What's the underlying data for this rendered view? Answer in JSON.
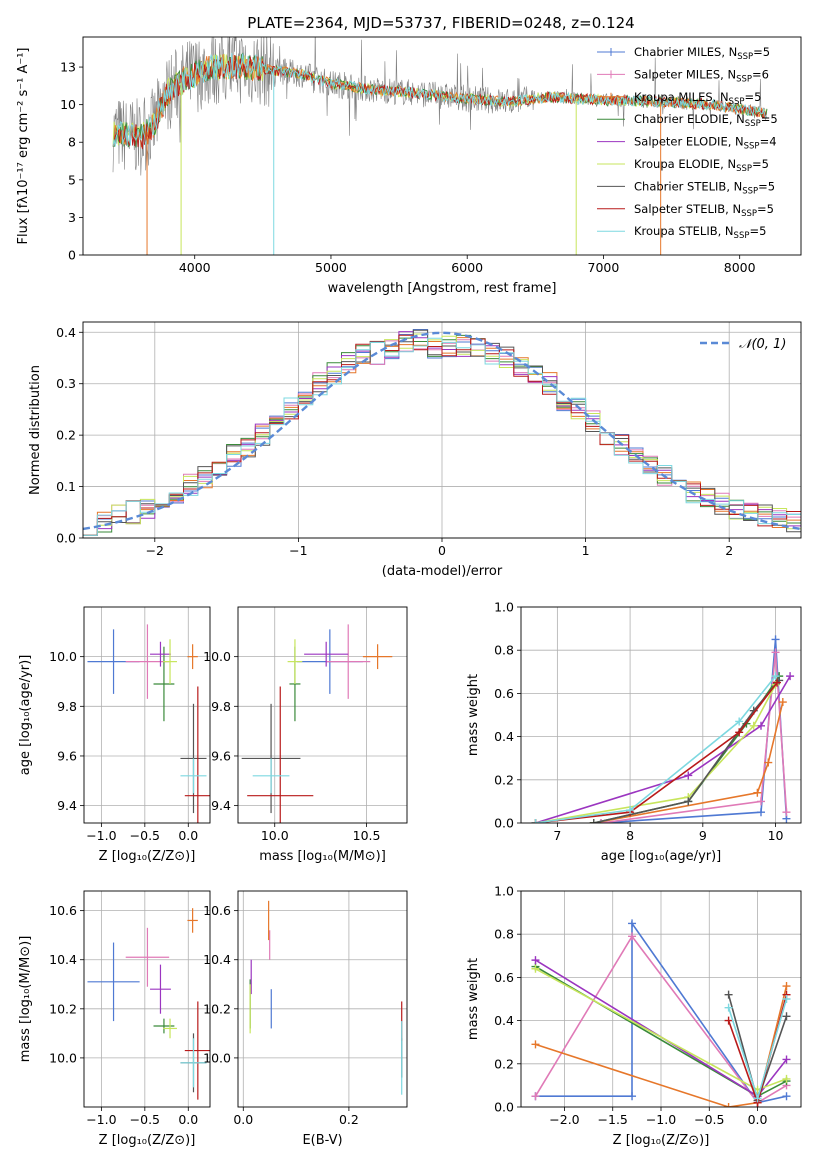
{
  "colors": {
    "chabrier_miles": "#4f79d3",
    "salpeter_miles": "#e07ab7",
    "kroupa_miles": "#e6772a",
    "chabrier_elodie": "#3a8a3a",
    "salpeter_elodie": "#9b35c0",
    "kroupa_elodie": "#c7e55c",
    "chabrier_stelib": "#555555",
    "salpeter_stelib": "#b81a1a",
    "kroupa_stelib": "#7dd8e0",
    "data": "#808080",
    "normal": "#5a8ad6"
  },
  "chart_data": [
    {
      "id": "spectrum",
      "type": "line",
      "title": "PLATE=2364, MJD=53737, FIBERID=0248, z=0.124",
      "xlabel": "wavelength [Angstrom, rest frame]",
      "ylabel": "Flux [fλ10⁻¹⁷ erg cm⁻² s⁻¹ A⁻¹]",
      "xlim": [
        3180,
        8450
      ],
      "ylim": [
        0,
        14.5
      ],
      "xticks": [
        4000,
        5000,
        6000,
        7000,
        8000
      ],
      "yticks": [
        0.0,
        2.5,
        5.0,
        7.5,
        10.0,
        12.5
      ],
      "grid": false,
      "legend_position": "top-right",
      "continuum": {
        "x": [
          3400,
          3600,
          3700,
          3800,
          3950,
          4100,
          4300,
          4500,
          4800,
          5000,
          5300,
          5600,
          6000,
          6300,
          6600,
          7000,
          7400,
          7800,
          8200
        ],
        "y": [
          8.1,
          7.8,
          8.6,
          10.8,
          11.8,
          12.4,
          12.6,
          12.4,
          12.0,
          11.4,
          11.0,
          10.8,
          10.4,
          10.2,
          10.5,
          10.3,
          10.2,
          10.0,
          9.4
        ]
      },
      "legend": [
        {
          "label": "Chabrier MILES, N$_{SSP}$=5",
          "text": "Chabrier MILES, N",
          "sub": "SSP",
          "eq": "=5",
          "color_key": "chabrier_miles",
          "marker": true
        },
        {
          "label": "Salpeter MILES, N$_{SSP}$=6",
          "text": "Salpeter MILES, N",
          "sub": "SSP",
          "eq": "=6",
          "color_key": "salpeter_miles",
          "marker": true
        },
        {
          "label": "Kroupa MILES, N$_{SSP}$=5",
          "text": "Kroupa MILES, N",
          "sub": "SSP",
          "eq": "=5",
          "color_key": "kroupa_miles",
          "marker": true
        },
        {
          "label": "Chabrier ELODIE, N$_{SSP}$=5",
          "text": "Chabrier ELODIE, N",
          "sub": "SSP",
          "eq": "=5",
          "color_key": "chabrier_elodie",
          "marker": false
        },
        {
          "label": "Salpeter ELODIE, N$_{SSP}$=4",
          "text": "Salpeter ELODIE, N",
          "sub": "SSP",
          "eq": "=4",
          "color_key": "salpeter_elodie",
          "marker": false
        },
        {
          "label": "Kroupa ELODIE, N$_{SSP}$=5",
          "text": "Kroupa ELODIE, N",
          "sub": "SSP",
          "eq": "=5",
          "color_key": "kroupa_elodie",
          "marker": false
        },
        {
          "label": "Chabrier STELIB, N$_{SSP}$=5",
          "text": "Chabrier STELIB, N",
          "sub": "SSP",
          "eq": "=5",
          "color_key": "chabrier_stelib",
          "marker": false
        },
        {
          "label": "Salpeter STELIB, N$_{SSP}$=5",
          "text": "Salpeter STELIB, N",
          "sub": "SSP",
          "eq": "=5",
          "color_key": "salpeter_stelib",
          "marker": false
        },
        {
          "label": "Kroupa STELIB, N$_{SSP}$=5",
          "text": "Kroupa STELIB, N",
          "sub": "SSP",
          "eq": "=5",
          "color_key": "kroupa_stelib",
          "marker": false
        }
      ]
    },
    {
      "id": "residuals",
      "type": "bar",
      "xlabel": "(data-model)/error",
      "ylabel": "Normed distribution",
      "xlim": [
        -2.5,
        2.5
      ],
      "ylim": [
        0,
        0.42
      ],
      "xticks": [
        -2,
        -1,
        0,
        1,
        2
      ],
      "yticks": [
        0.0,
        0.1,
        0.2,
        0.3,
        0.4
      ],
      "grid": true,
      "legend_position": "top-right",
      "legend": [
        {
          "label": "$\\mathcal{N}(0,1)$",
          "text": "𝒩(0, 1)"
        }
      ],
      "bin_width": 0.1,
      "bin_centers": [
        -2.45,
        -2.35,
        -2.25,
        -2.15,
        -2.05,
        -1.95,
        -1.85,
        -1.75,
        -1.65,
        -1.55,
        -1.45,
        -1.35,
        -1.25,
        -1.15,
        -1.05,
        -0.95,
        -0.85,
        -0.75,
        -0.65,
        -0.55,
        -0.45,
        -0.35,
        -0.25,
        -0.15,
        -0.05,
        0.05,
        0.15,
        0.25,
        0.35,
        0.45,
        0.55,
        0.65,
        0.75,
        0.85,
        0.95,
        1.05,
        1.15,
        1.25,
        1.35,
        1.45,
        1.55,
        1.65,
        1.75,
        1.85,
        1.95,
        2.05,
        2.15,
        2.25,
        2.35,
        2.45
      ],
      "series_profile": [
        0.025,
        0.033,
        0.042,
        0.05,
        0.06,
        0.075,
        0.09,
        0.105,
        0.12,
        0.14,
        0.16,
        0.18,
        0.2,
        0.225,
        0.25,
        0.275,
        0.3,
        0.32,
        0.34,
        0.355,
        0.36,
        0.37,
        0.38,
        0.385,
        0.37,
        0.37,
        0.375,
        0.37,
        0.36,
        0.35,
        0.335,
        0.315,
        0.3,
        0.27,
        0.25,
        0.225,
        0.2,
        0.18,
        0.16,
        0.14,
        0.12,
        0.105,
        0.09,
        0.078,
        0.067,
        0.058,
        0.05,
        0.043,
        0.037,
        0.032
      ]
    },
    {
      "id": "age_vs_z",
      "type": "scatter",
      "xlabel": "Z [log₁₀(Z/Z⊙)]",
      "ylabel": "age  [log₁₀(age/yr)]",
      "xlim": [
        -1.2,
        0.25
      ],
      "ylim": [
        9.33,
        10.2
      ],
      "xticks": [
        -1.0,
        -0.5,
        0.0
      ],
      "yticks": [
        9.4,
        9.6,
        9.8,
        10.0
      ],
      "grid": true,
      "points": [
        {
          "c": "chabrier_miles",
          "x": -0.86,
          "y": 9.98,
          "xerr": 0.3,
          "yerr": 0.13
        },
        {
          "c": "salpeter_miles",
          "x": -0.47,
          "y": 9.98,
          "xerr": 0.25,
          "yerr": 0.15
        },
        {
          "c": "kroupa_miles",
          "x": 0.05,
          "y": 10.0,
          "xerr": 0.06,
          "yerr": 0.05
        },
        {
          "c": "chabrier_elodie",
          "x": -0.28,
          "y": 9.89,
          "xerr": 0.12,
          "yerr": 0.15
        },
        {
          "c": "salpeter_elodie",
          "x": -0.32,
          "y": 10.01,
          "xerr": 0.12,
          "yerr": 0.05
        },
        {
          "c": "kroupa_elodie",
          "x": -0.21,
          "y": 9.98,
          "xerr": 0.08,
          "yerr": 0.09
        },
        {
          "c": "chabrier_stelib",
          "x": 0.06,
          "y": 9.59,
          "xerr": 0.15,
          "yerr": 0.22
        },
        {
          "c": "salpeter_stelib",
          "x": 0.11,
          "y": 9.44,
          "xerr": 0.15,
          "yerr": 0.44
        },
        {
          "c": "kroupa_stelib",
          "x": 0.06,
          "y": 9.52,
          "xerr": 0.15,
          "yerr": 0.07
        }
      ]
    },
    {
      "id": "age_vs_mass",
      "type": "scatter",
      "xlabel": "mass [log₁₀(M/M⊙)]",
      "ylabel": "",
      "xlim": [
        9.8,
        10.72
      ],
      "ylim": [
        9.33,
        10.2
      ],
      "xticks": [
        10.0,
        10.5
      ],
      "yticks": [
        9.4,
        9.6,
        9.8,
        10.0
      ],
      "grid": true,
      "points": [
        {
          "c": "chabrier_miles",
          "x": 10.3,
          "y": 9.98,
          "xerr": 0.18,
          "yerr": 0.13
        },
        {
          "c": "salpeter_miles",
          "x": 10.4,
          "y": 9.98,
          "xerr": 0.12,
          "yerr": 0.15
        },
        {
          "c": "kroupa_miles",
          "x": 10.56,
          "y": 10.0,
          "xerr": 0.08,
          "yerr": 0.05
        },
        {
          "c": "chabrier_elodie",
          "x": 10.11,
          "y": 9.89,
          "xerr": 0.03,
          "yerr": 0.15
        },
        {
          "c": "salpeter_elodie",
          "x": 10.28,
          "y": 10.01,
          "xerr": 0.12,
          "yerr": 0.05
        },
        {
          "c": "kroupa_elodie",
          "x": 10.11,
          "y": 9.98,
          "xerr": 0.04,
          "yerr": 0.09
        },
        {
          "c": "chabrier_stelib",
          "x": 9.98,
          "y": 9.59,
          "xerr": 0.16,
          "yerr": 0.22
        },
        {
          "c": "salpeter_stelib",
          "x": 10.03,
          "y": 9.44,
          "xerr": 0.18,
          "yerr": 0.44
        },
        {
          "c": "kroupa_stelib",
          "x": 9.98,
          "y": 9.52,
          "xerr": 0.1,
          "yerr": 0.07
        }
      ]
    },
    {
      "id": "weight_vs_age",
      "type": "line",
      "xlabel": "age  [log₁₀(age/yr)]",
      "ylabel": "mass weight",
      "xlim": [
        6.5,
        10.35
      ],
      "ylim": [
        0.0,
        1.0
      ],
      "xticks": [
        7,
        8,
        9,
        10
      ],
      "yticks": [
        0.0,
        0.2,
        0.4,
        0.6,
        0.8,
        1.0
      ],
      "grid": true,
      "series": [
        {
          "c": "chabrier_miles",
          "x": [
            7.6,
            9.8,
            10.0,
            10.15
          ],
          "y": [
            0.0,
            0.05,
            0.85,
            0.02
          ]
        },
        {
          "c": "salpeter_miles",
          "x": [
            7.6,
            9.8,
            10.0,
            10.15
          ],
          "y": [
            0.0,
            0.1,
            0.79,
            0.05
          ]
        },
        {
          "c": "kroupa_miles",
          "x": [
            7.5,
            9.75,
            9.9,
            10.1
          ],
          "y": [
            0.0,
            0.14,
            0.28,
            0.56
          ]
        },
        {
          "c": "chabrier_elodie",
          "x": [
            7.5,
            8.8,
            9.6,
            10.05
          ],
          "y": [
            0.0,
            0.1,
            0.46,
            0.68
          ]
        },
        {
          "c": "salpeter_elodie",
          "x": [
            6.7,
            8.8,
            9.8,
            10.2
          ],
          "y": [
            0.0,
            0.22,
            0.45,
            0.68
          ]
        },
        {
          "c": "kroupa_elodie",
          "x": [
            6.7,
            8.8,
            9.7,
            10.0
          ],
          "y": [
            0.0,
            0.12,
            0.45,
            0.64
          ]
        },
        {
          "c": "chabrier_stelib",
          "x": [
            7.5,
            8.8,
            9.7,
            10.05
          ],
          "y": [
            0.0,
            0.1,
            0.52,
            0.66
          ]
        },
        {
          "c": "salpeter_stelib",
          "x": [
            6.7,
            8.0,
            9.5,
            10.02
          ],
          "y": [
            0.0,
            0.05,
            0.42,
            0.65
          ]
        },
        {
          "c": "kroupa_stelib",
          "x": [
            6.7,
            8.0,
            9.5,
            10.0
          ],
          "y": [
            0.0,
            0.06,
            0.47,
            0.68
          ]
        }
      ]
    },
    {
      "id": "mass_vs_z",
      "type": "scatter",
      "xlabel": "Z [log₁₀(Z/Z⊙)]",
      "ylabel": "mass [log₁₀(M/M⊙)]",
      "xlim": [
        -1.2,
        0.25
      ],
      "ylim": [
        9.8,
        10.68
      ],
      "xticks": [
        -1.0,
        -0.5,
        0.0
      ],
      "yticks": [
        10.0,
        10.2,
        10.4,
        10.6
      ],
      "grid": true,
      "points": [
        {
          "c": "chabrier_miles",
          "x": -0.86,
          "y": 10.31,
          "xerr": 0.3,
          "yerr": 0.16
        },
        {
          "c": "salpeter_miles",
          "x": -0.47,
          "y": 10.41,
          "xerr": 0.25,
          "yerr": 0.12
        },
        {
          "c": "kroupa_miles",
          "x": 0.05,
          "y": 10.56,
          "xerr": 0.06,
          "yerr": 0.05
        },
        {
          "c": "chabrier_elodie",
          "x": -0.28,
          "y": 10.13,
          "xerr": 0.12,
          "yerr": 0.03
        },
        {
          "c": "salpeter_elodie",
          "x": -0.32,
          "y": 10.28,
          "xerr": 0.12,
          "yerr": 0.1
        },
        {
          "c": "kroupa_elodie",
          "x": -0.21,
          "y": 10.12,
          "xerr": 0.08,
          "yerr": 0.04
        },
        {
          "c": "chabrier_stelib",
          "x": 0.06,
          "y": 9.98,
          "xerr": 0.15,
          "yerr": 0.12
        },
        {
          "c": "salpeter_stelib",
          "x": 0.11,
          "y": 10.03,
          "xerr": 0.15,
          "yerr": 0.2
        },
        {
          "c": "kroupa_stelib",
          "x": 0.06,
          "y": 9.98,
          "xerr": 0.15,
          "yerr": 0.1
        }
      ]
    },
    {
      "id": "mass_vs_ebv",
      "type": "scatter",
      "xlabel": "E(B-V)",
      "ylabel": "",
      "xlim": [
        -0.01,
        0.31
      ],
      "ylim": [
        9.8,
        10.68
      ],
      "xticks": [
        0.0,
        0.2
      ],
      "yticks": [
        10.0,
        10.2,
        10.4,
        10.6
      ],
      "grid": true,
      "points": [
        {
          "c": "chabrier_miles",
          "x": 0.053,
          "y": 10.2,
          "xerr": 0,
          "yerr": 0.08
        },
        {
          "c": "salpeter_miles",
          "x": 0.05,
          "y": 10.46,
          "xerr": 0,
          "yerr": 0.06
        },
        {
          "c": "kroupa_miles",
          "x": 0.048,
          "y": 10.56,
          "xerr": 0,
          "yerr": 0.08
        },
        {
          "c": "chabrier_elodie",
          "x": 0.013,
          "y": 10.22,
          "xerr": 0,
          "yerr": 0.1
        },
        {
          "c": "salpeter_elodie",
          "x": 0.015,
          "y": 10.33,
          "xerr": 0,
          "yerr": 0.07
        },
        {
          "c": "kroupa_elodie",
          "x": 0.013,
          "y": 10.2,
          "xerr": 0,
          "yerr": 0.1
        },
        {
          "c": "chabrier_stelib",
          "x": 0.3,
          "y": 10.0,
          "xerr": 0,
          "yerr": 0.08
        },
        {
          "c": "salpeter_stelib",
          "x": 0.3,
          "y": 10.15,
          "xerr": 0,
          "yerr": 0.08
        },
        {
          "c": "kroupa_stelib",
          "x": 0.3,
          "y": 10.0,
          "xerr": 0,
          "yerr": 0.15
        }
      ]
    },
    {
      "id": "weight_vs_z",
      "type": "line",
      "xlabel": "Z [log₁₀(Z/Z⊙)]",
      "ylabel": "mass weight",
      "xlim": [
        -2.45,
        0.45
      ],
      "ylim": [
        0.0,
        1.0
      ],
      "xticks": [
        -2.0,
        -1.5,
        -1.0,
        -0.5,
        0.0
      ],
      "yticks": [
        0.0,
        0.2,
        0.4,
        0.6,
        0.8,
        1.0
      ],
      "grid": true,
      "series": [
        {
          "c": "chabrier_miles",
          "x": [
            -2.3,
            -1.3,
            -1.3,
            0.0,
            0.3
          ],
          "y": [
            0.05,
            0.05,
            0.85,
            0.02,
            0.05
          ]
        },
        {
          "c": "salpeter_miles",
          "x": [
            -2.3,
            -1.3,
            0.0,
            0.3
          ],
          "y": [
            0.05,
            0.79,
            0.02,
            0.1
          ]
        },
        {
          "c": "kroupa_miles",
          "x": [
            -2.3,
            -0.3,
            0.0,
            0.3
          ],
          "y": [
            0.29,
            0.0,
            0.02,
            0.56
          ]
        },
        {
          "c": "chabrier_elodie",
          "x": [
            -2.3,
            0.0,
            0.3
          ],
          "y": [
            0.65,
            0.05,
            0.12
          ]
        },
        {
          "c": "salpeter_elodie",
          "x": [
            -2.3,
            0.0,
            0.3
          ],
          "y": [
            0.68,
            0.05,
            0.22
          ]
        },
        {
          "c": "kroupa_elodie",
          "x": [
            -2.3,
            0.0,
            0.3
          ],
          "y": [
            0.64,
            0.08,
            0.13
          ]
        },
        {
          "c": "chabrier_stelib",
          "x": [
            -0.3,
            0.0,
            0.3
          ],
          "y": [
            0.52,
            0.03,
            0.42
          ]
        },
        {
          "c": "salpeter_stelib",
          "x": [
            -0.3,
            0.0,
            0.3
          ],
          "y": [
            0.4,
            0.02,
            0.52
          ]
        },
        {
          "c": "kroupa_stelib",
          "x": [
            -0.3,
            0.0,
            0.3
          ],
          "y": [
            0.46,
            0.04,
            0.5
          ]
        }
      ]
    }
  ]
}
